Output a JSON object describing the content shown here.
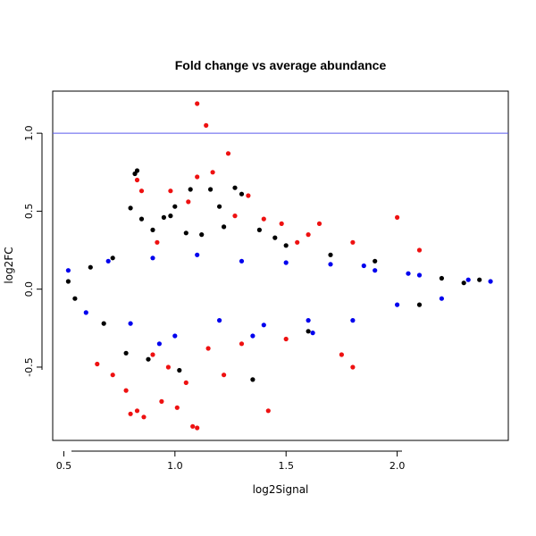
{
  "chart_data": {
    "type": "scatter",
    "title": "Fold change vs average abundance",
    "xlabel": "log2Signal",
    "ylabel": "log2FC",
    "xlim": [
      0.45,
      2.5
    ],
    "ylim": [
      -0.97,
      1.27
    ],
    "x_ticks": [
      0.5,
      1.0,
      1.5,
      2.0
    ],
    "x_tick_labels": [
      "0.5",
      "1.0",
      "1.5",
      "2.0"
    ],
    "y_ticks": [
      -0.5,
      0.0,
      0.5,
      1.0
    ],
    "y_tick_labels": [
      "-0.5",
      "0.0",
      "0.5",
      "1.0"
    ],
    "reference_line": {
      "y": 1.0,
      "color": "#5a5aee"
    },
    "grid": false,
    "series": [
      {
        "color": "#000000",
        "points": [
          [
            0.52,
            0.05
          ],
          [
            0.55,
            -0.06
          ],
          [
            0.62,
            0.14
          ],
          [
            0.68,
            -0.22
          ],
          [
            0.72,
            0.2
          ],
          [
            0.78,
            -0.41
          ],
          [
            0.8,
            0.52
          ],
          [
            0.82,
            0.74
          ],
          [
            0.83,
            0.76
          ],
          [
            0.85,
            0.45
          ],
          [
            0.88,
            -0.45
          ],
          [
            0.9,
            0.38
          ],
          [
            0.95,
            0.46
          ],
          [
            0.98,
            0.47
          ],
          [
            1.0,
            0.53
          ],
          [
            1.02,
            -0.52
          ],
          [
            1.05,
            0.36
          ],
          [
            1.07,
            0.64
          ],
          [
            1.12,
            0.35
          ],
          [
            1.16,
            0.64
          ],
          [
            1.2,
            0.53
          ],
          [
            1.22,
            0.4
          ],
          [
            1.27,
            0.65
          ],
          [
            1.3,
            0.61
          ],
          [
            1.35,
            -0.58
          ],
          [
            1.38,
            0.38
          ],
          [
            1.45,
            0.33
          ],
          [
            1.5,
            0.28
          ],
          [
            1.6,
            -0.27
          ],
          [
            1.7,
            0.22
          ],
          [
            1.9,
            0.18
          ],
          [
            2.1,
            -0.1
          ],
          [
            2.2,
            0.07
          ],
          [
            2.3,
            0.04
          ],
          [
            2.37,
            0.06
          ]
        ]
      },
      {
        "color": "#ee1111",
        "points": [
          [
            1.1,
            1.19
          ],
          [
            1.14,
            1.05
          ],
          [
            1.24,
            0.87
          ],
          [
            1.1,
            0.72
          ],
          [
            1.17,
            0.75
          ],
          [
            0.83,
            0.7
          ],
          [
            0.85,
            0.63
          ],
          [
            0.98,
            0.63
          ],
          [
            1.33,
            0.6
          ],
          [
            1.06,
            0.56
          ],
          [
            1.27,
            0.47
          ],
          [
            1.4,
            0.45
          ],
          [
            1.48,
            0.42
          ],
          [
            1.65,
            0.42
          ],
          [
            1.6,
            0.35
          ],
          [
            2.0,
            0.46
          ],
          [
            2.1,
            0.25
          ],
          [
            1.8,
            0.3
          ],
          [
            0.92,
            0.3
          ],
          [
            1.55,
            0.3
          ],
          [
            0.65,
            -0.48
          ],
          [
            0.72,
            -0.55
          ],
          [
            0.78,
            -0.65
          ],
          [
            0.8,
            -0.8
          ],
          [
            0.83,
            -0.78
          ],
          [
            0.86,
            -0.82
          ],
          [
            0.94,
            -0.72
          ],
          [
            1.01,
            -0.76
          ],
          [
            1.08,
            -0.88
          ],
          [
            1.1,
            -0.89
          ],
          [
            1.42,
            -0.78
          ],
          [
            1.75,
            -0.42
          ],
          [
            1.8,
            -0.5
          ],
          [
            1.22,
            -0.55
          ],
          [
            1.05,
            -0.6
          ],
          [
            0.97,
            -0.5
          ],
          [
            1.15,
            -0.38
          ],
          [
            1.3,
            -0.35
          ],
          [
            0.9,
            -0.42
          ],
          [
            1.5,
            -0.32
          ]
        ]
      },
      {
        "color": "#0000ee",
        "points": [
          [
            0.52,
            0.12
          ],
          [
            0.6,
            -0.15
          ],
          [
            0.7,
            0.18
          ],
          [
            0.8,
            -0.22
          ],
          [
            0.9,
            0.2
          ],
          [
            1.0,
            -0.3
          ],
          [
            1.1,
            0.22
          ],
          [
            1.2,
            -0.2
          ],
          [
            1.3,
            0.18
          ],
          [
            1.4,
            -0.23
          ],
          [
            1.5,
            0.17
          ],
          [
            1.6,
            -0.2
          ],
          [
            1.7,
            0.16
          ],
          [
            1.8,
            -0.2
          ],
          [
            1.9,
            0.12
          ],
          [
            2.0,
            -0.1
          ],
          [
            2.1,
            0.09
          ],
          [
            2.2,
            -0.06
          ],
          [
            2.32,
            0.06
          ],
          [
            2.42,
            0.05
          ],
          [
            0.93,
            -0.35
          ],
          [
            1.35,
            -0.3
          ],
          [
            1.62,
            -0.28
          ],
          [
            1.85,
            0.15
          ],
          [
            2.05,
            0.1
          ]
        ]
      }
    ]
  }
}
